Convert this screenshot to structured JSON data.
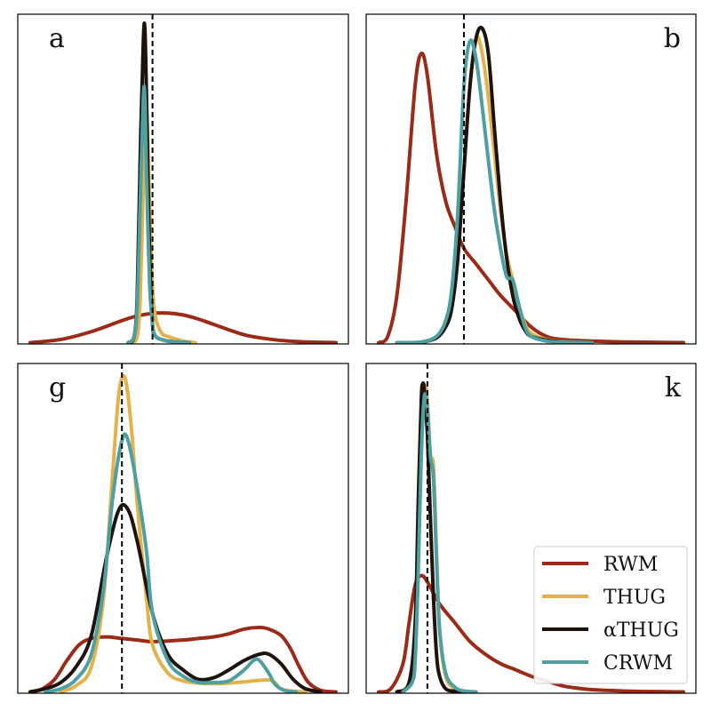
{
  "colors": {
    "RWM": "#9b2a17",
    "THUG": "#e3b24a",
    "aTHUG": "#1e130c",
    "CRWM": "#4e9fa1",
    "truth": "#000000"
  },
  "legend": {
    "position": "lower-right of panel k",
    "entries": [
      {
        "key": "RWM",
        "label": "RWM"
      },
      {
        "key": "THUG",
        "label": "THUG"
      },
      {
        "key": "aTHUG",
        "label": "αTHUG"
      },
      {
        "key": "CRWM",
        "label": "CRWM"
      }
    ]
  },
  "chart_data": [
    {
      "type": "line",
      "panel": "a",
      "xlabel": "",
      "ylabel": "",
      "xticks": false,
      "yticks": false,
      "xlim": [
        0,
        1
      ],
      "ylim": [
        0,
        1
      ],
      "truth_line_x": 0.4,
      "series": [
        {
          "key": "RWM",
          "x": [
            0.0,
            0.1,
            0.2,
            0.3,
            0.35,
            0.4,
            0.45,
            0.5,
            0.55,
            0.6,
            0.7,
            0.8,
            0.9,
            1.0
          ],
          "y": [
            0.0,
            0.01,
            0.035,
            0.07,
            0.085,
            0.093,
            0.094,
            0.088,
            0.075,
            0.058,
            0.025,
            0.009,
            0.002,
            0.0
          ]
        },
        {
          "key": "THUG",
          "x": [
            0.33,
            0.35,
            0.36,
            0.37,
            0.38,
            0.39,
            0.4,
            0.41,
            0.43,
            0.45,
            0.48,
            0.5,
            0.52,
            0.54
          ],
          "y": [
            0.0,
            0.02,
            0.15,
            0.5,
            0.75,
            0.45,
            0.18,
            0.08,
            0.03,
            0.02,
            0.01,
            0.005,
            0.002,
            0.0
          ]
        },
        {
          "key": "aTHUG",
          "x": [
            0.32,
            0.34,
            0.35,
            0.36,
            0.37,
            0.375,
            0.38,
            0.39,
            0.4,
            0.41,
            0.43,
            0.45,
            0.48,
            0.52
          ],
          "y": [
            0.0,
            0.02,
            0.15,
            0.6,
            0.96,
            1.0,
            0.8,
            0.3,
            0.06,
            0.02,
            0.01,
            0.005,
            0.002,
            0.0
          ]
        },
        {
          "key": "CRWM",
          "x": [
            0.32,
            0.34,
            0.35,
            0.36,
            0.37,
            0.375,
            0.38,
            0.39,
            0.4,
            0.41,
            0.43,
            0.45,
            0.48,
            0.52
          ],
          "y": [
            0.0,
            0.02,
            0.12,
            0.45,
            0.78,
            0.78,
            0.55,
            0.2,
            0.06,
            0.02,
            0.01,
            0.005,
            0.002,
            0.0
          ]
        }
      ]
    },
    {
      "type": "line",
      "panel": "b",
      "xlabel": "",
      "ylabel": "",
      "xticks": false,
      "yticks": false,
      "xlim": [
        0,
        1
      ],
      "ylim": [
        0,
        1
      ],
      "truth_line_x": 0.28,
      "series": [
        {
          "key": "RWM",
          "x": [
            0.0,
            0.03,
            0.06,
            0.09,
            0.12,
            0.14,
            0.16,
            0.19,
            0.22,
            0.25,
            0.28,
            0.32,
            0.36,
            0.4,
            0.45,
            0.5,
            0.55,
            0.6,
            0.7,
            0.8,
            1.0
          ],
          "y": [
            0.0,
            0.02,
            0.15,
            0.45,
            0.82,
            0.92,
            0.85,
            0.6,
            0.45,
            0.37,
            0.3,
            0.25,
            0.2,
            0.15,
            0.1,
            0.05,
            0.02,
            0.01,
            0.005,
            0.002,
            0.0
          ]
        },
        {
          "key": "THUG",
          "x": [
            0.06,
            0.14,
            0.19,
            0.22,
            0.24,
            0.26,
            0.28,
            0.3,
            0.32,
            0.34,
            0.36,
            0.38,
            0.4,
            0.42,
            0.44,
            0.46,
            0.48,
            0.5,
            0.55,
            0.6,
            0.7
          ],
          "y": [
            0.0,
            0.002,
            0.02,
            0.06,
            0.13,
            0.3,
            0.55,
            0.82,
            0.97,
            0.92,
            0.78,
            0.6,
            0.42,
            0.28,
            0.2,
            0.12,
            0.06,
            0.03,
            0.01,
            0.004,
            0.0
          ]
        },
        {
          "key": "aTHUG",
          "x": [
            0.14,
            0.19,
            0.22,
            0.24,
            0.26,
            0.28,
            0.3,
            0.32,
            0.34,
            0.36,
            0.38,
            0.4,
            0.42,
            0.44,
            0.46,
            0.48,
            0.5,
            0.55,
            0.6,
            0.7
          ],
          "y": [
            0.0,
            0.015,
            0.05,
            0.11,
            0.27,
            0.55,
            0.82,
            0.97,
            1.0,
            0.92,
            0.68,
            0.45,
            0.27,
            0.15,
            0.08,
            0.04,
            0.02,
            0.008,
            0.003,
            0.0
          ]
        },
        {
          "key": "CRWM",
          "x": [
            0.06,
            0.14,
            0.19,
            0.22,
            0.24,
            0.26,
            0.28,
            0.3,
            0.32,
            0.34,
            0.36,
            0.38,
            0.4,
            0.42,
            0.44,
            0.46,
            0.48,
            0.5,
            0.55,
            0.6,
            0.7
          ],
          "y": [
            0.0,
            0.002,
            0.02,
            0.07,
            0.17,
            0.42,
            0.82,
            0.96,
            0.9,
            0.75,
            0.58,
            0.42,
            0.3,
            0.21,
            0.2,
            0.12,
            0.05,
            0.02,
            0.005,
            0.002,
            0.0
          ]
        }
      ]
    },
    {
      "type": "line",
      "panel": "g",
      "xlabel": "",
      "ylabel": "",
      "xticks": false,
      "yticks": false,
      "xlim": [
        0,
        1
      ],
      "ylim": [
        0,
        1
      ],
      "truth_line_x": 0.3,
      "series": [
        {
          "key": "RWM",
          "x": [
            0.0,
            0.04,
            0.08,
            0.12,
            0.16,
            0.2,
            0.25,
            0.3,
            0.35,
            0.4,
            0.5,
            0.55,
            0.6,
            0.65,
            0.7,
            0.75,
            0.78,
            0.82,
            0.85,
            0.88,
            0.91,
            0.95,
            1.0
          ],
          "y": [
            0.0,
            0.01,
            0.04,
            0.1,
            0.15,
            0.17,
            0.175,
            0.17,
            0.165,
            0.16,
            0.165,
            0.17,
            0.175,
            0.185,
            0.2,
            0.205,
            0.2,
            0.18,
            0.14,
            0.08,
            0.03,
            0.005,
            0.0
          ]
        },
        {
          "key": "THUG",
          "x": [
            0.1,
            0.15,
            0.2,
            0.24,
            0.27,
            0.29,
            0.31,
            0.33,
            0.35,
            0.38,
            0.4,
            0.45,
            0.5,
            0.55,
            0.6,
            0.65,
            0.7,
            0.74,
            0.78,
            0.8,
            0.82,
            0.86,
            0.9
          ],
          "y": [
            0.0,
            0.02,
            0.08,
            0.3,
            0.7,
            0.95,
            1.0,
            0.85,
            0.6,
            0.3,
            0.15,
            0.06,
            0.035,
            0.028,
            0.026,
            0.028,
            0.032,
            0.036,
            0.038,
            0.03,
            0.01,
            0.002,
            0.0
          ]
        },
        {
          "key": "aTHUG",
          "x": [
            0.0,
            0.05,
            0.1,
            0.15,
            0.2,
            0.25,
            0.29,
            0.32,
            0.35,
            0.4,
            0.45,
            0.5,
            0.55,
            0.6,
            0.65,
            0.7,
            0.75,
            0.78,
            0.82,
            0.86,
            0.9,
            0.95
          ],
          "y": [
            0.0,
            0.01,
            0.03,
            0.08,
            0.18,
            0.43,
            0.58,
            0.58,
            0.48,
            0.25,
            0.12,
            0.07,
            0.04,
            0.045,
            0.07,
            0.1,
            0.12,
            0.12,
            0.09,
            0.04,
            0.01,
            0.0
          ]
        },
        {
          "key": "CRWM",
          "x": [
            0.05,
            0.1,
            0.15,
            0.2,
            0.24,
            0.27,
            0.3,
            0.32,
            0.35,
            0.38,
            0.4,
            0.45,
            0.5,
            0.55,
            0.6,
            0.65,
            0.7,
            0.73,
            0.75,
            0.78,
            0.8,
            0.83,
            0.87
          ],
          "y": [
            0.0,
            0.01,
            0.04,
            0.12,
            0.33,
            0.62,
            0.8,
            0.8,
            0.65,
            0.45,
            0.25,
            0.1,
            0.05,
            0.03,
            0.03,
            0.035,
            0.07,
            0.1,
            0.1,
            0.06,
            0.025,
            0.005,
            0.0
          ]
        }
      ]
    },
    {
      "type": "line",
      "panel": "k",
      "xlabel": "",
      "ylabel": "",
      "xticks": false,
      "yticks": false,
      "xlim": [
        0,
        1
      ],
      "ylim": [
        0,
        1
      ],
      "truth_line_x": 0.16,
      "series": [
        {
          "key": "RWM",
          "x": [
            0.0,
            0.04,
            0.08,
            0.1,
            0.12,
            0.14,
            0.16,
            0.2,
            0.25,
            0.3,
            0.35,
            0.4,
            0.45,
            0.5,
            0.55,
            0.6,
            0.65,
            0.7,
            0.8,
            0.9,
            1.0
          ],
          "y": [
            0.0,
            0.01,
            0.09,
            0.22,
            0.34,
            0.37,
            0.35,
            0.28,
            0.22,
            0.16,
            0.12,
            0.09,
            0.07,
            0.05,
            0.035,
            0.02,
            0.012,
            0.007,
            0.003,
            0.001,
            0.0
          ]
        },
        {
          "key": "THUG",
          "x": [
            0.06,
            0.1,
            0.12,
            0.13,
            0.14,
            0.15,
            0.16,
            0.17,
            0.18,
            0.19,
            0.2,
            0.22,
            0.25,
            0.28,
            0.32
          ],
          "y": [
            0.0,
            0.03,
            0.2,
            0.55,
            0.85,
            0.97,
            0.93,
            0.75,
            0.72,
            0.45,
            0.2,
            0.05,
            0.01,
            0.002,
            0.0
          ]
        },
        {
          "key": "aTHUG",
          "x": [
            0.06,
            0.1,
            0.12,
            0.13,
            0.14,
            0.145,
            0.15,
            0.16,
            0.17,
            0.18,
            0.19,
            0.2,
            0.22,
            0.25,
            0.3
          ],
          "y": [
            0.0,
            0.03,
            0.22,
            0.6,
            0.93,
            0.98,
            0.96,
            0.82,
            0.55,
            0.3,
            0.12,
            0.05,
            0.01,
            0.002,
            0.0
          ]
        },
        {
          "key": "CRWM",
          "x": [
            0.08,
            0.11,
            0.12,
            0.13,
            0.14,
            0.15,
            0.16,
            0.17,
            0.18,
            0.19,
            0.2,
            0.22,
            0.25,
            0.28,
            0.32
          ],
          "y": [
            0.0,
            0.03,
            0.1,
            0.38,
            0.75,
            0.94,
            0.9,
            0.75,
            0.68,
            0.42,
            0.2,
            0.06,
            0.015,
            0.003,
            0.0
          ]
        }
      ]
    }
  ]
}
